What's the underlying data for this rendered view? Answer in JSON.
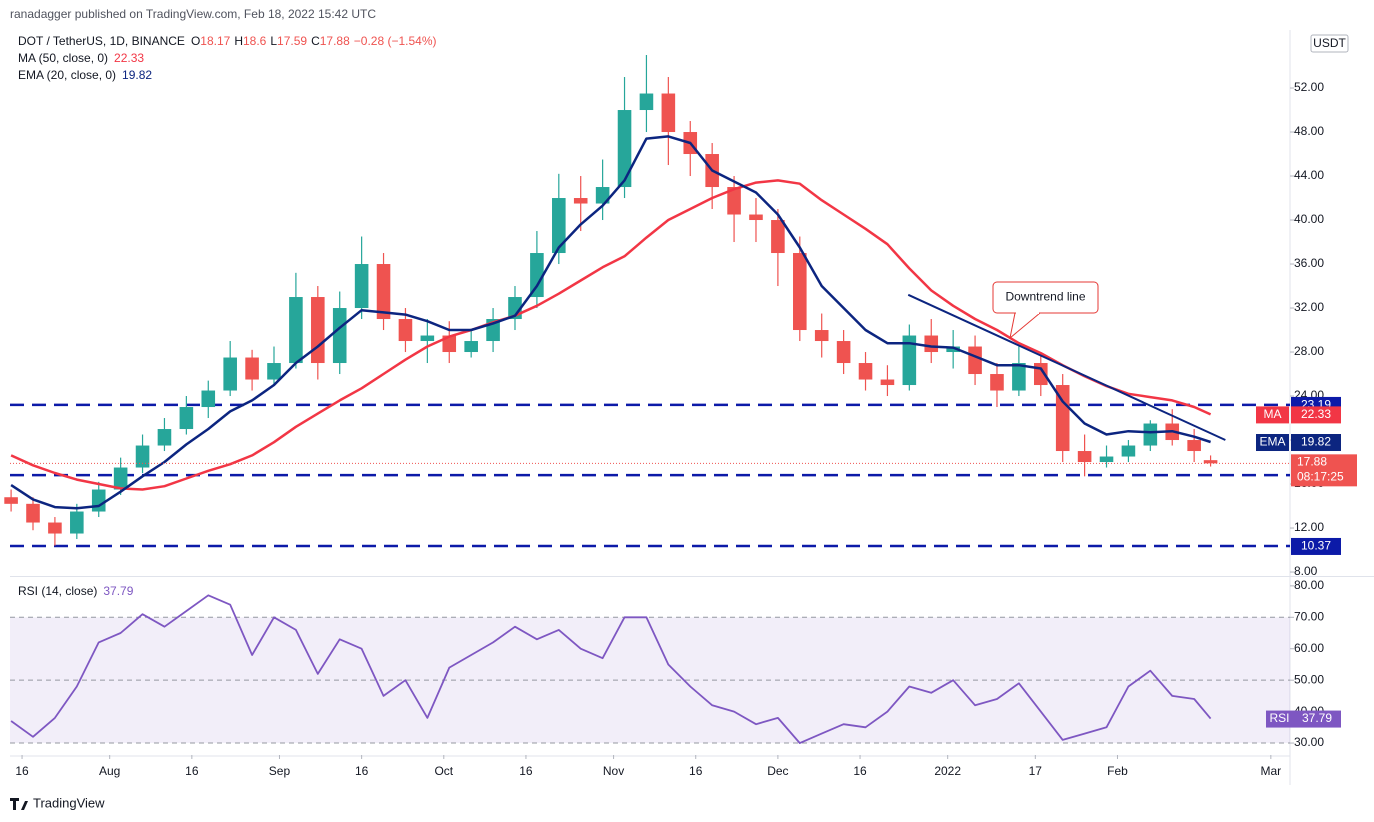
{
  "header": {
    "publisher": "ranadagger published on TradingView.com, Feb 18, 2022 15:42 UTC"
  },
  "footer": {
    "brand": "TradingView"
  },
  "chart_data": [
    {
      "type": "candlestick",
      "symbol": "DOT / TetherUS, 1D, BINANCE",
      "ohlc_letters": [
        "O",
        "H",
        "L",
        "C"
      ],
      "change": "−0.28 (−1.54%)",
      "currency": "USDT",
      "countdown": "08:17:25",
      "up_color": "#26a69a",
      "down_color": "#ef5350",
      "x": [
        -2,
        2,
        6,
        10,
        14,
        18,
        22,
        26,
        30,
        34,
        38,
        42,
        46,
        50,
        54,
        58,
        62,
        66,
        70,
        74,
        78,
        82,
        86,
        90,
        94,
        98,
        102,
        106,
        110,
        114,
        118,
        122,
        126,
        130,
        134,
        138,
        142,
        146,
        150,
        154,
        158,
        162,
        166,
        170,
        174,
        178,
        182,
        186,
        190,
        194,
        198,
        202,
        206,
        210,
        214,
        217
      ],
      "open": [
        14.8,
        14.2,
        12.5,
        11.5,
        13.5,
        15.5,
        17.5,
        19.5,
        21,
        23,
        24.5,
        27.5,
        25.5,
        27,
        33,
        27,
        32,
        36,
        31,
        29,
        29.5,
        28,
        29,
        31,
        33,
        37,
        42,
        41.5,
        43,
        50,
        51.5,
        48,
        46,
        43,
        40.5,
        40,
        37,
        30,
        29,
        27,
        25.5,
        25,
        29.5,
        28,
        28.5,
        26,
        24.5,
        27,
        25,
        19,
        18,
        18.5,
        19.5,
        21.5,
        20,
        18.17
      ],
      "high": [
        15.5,
        14.8,
        13.0,
        14.2,
        16.2,
        18.4,
        20.5,
        22.0,
        24.0,
        25.4,
        29.0,
        28.2,
        28.5,
        35.2,
        34.0,
        33.5,
        38.5,
        37.0,
        32.0,
        31.0,
        30.8,
        30.0,
        32.0,
        34.0,
        39.0,
        44.2,
        44.0,
        45.5,
        53.0,
        55.0,
        53.0,
        49.0,
        47.0,
        44.0,
        42.0,
        41.0,
        38.5,
        31.5,
        30.0,
        28.0,
        26.8,
        30.5,
        31.0,
        30.0,
        29.5,
        27.0,
        28.5,
        28.0,
        26.0,
        20.5,
        19.5,
        20.0,
        21.8,
        22.8,
        21.0,
        18.6
      ],
      "low": [
        13.5,
        11.8,
        10.4,
        11.0,
        13.0,
        15.0,
        17.0,
        19.0,
        20.5,
        22.0,
        24.0,
        24.5,
        25.0,
        26.5,
        25.5,
        26.0,
        31.0,
        30.0,
        28.0,
        27.0,
        27.0,
        27.5,
        28.0,
        30.0,
        32.0,
        36.0,
        39.0,
        40.0,
        42.0,
        48.0,
        45.0,
        44.0,
        41.0,
        38.0,
        38.0,
        34.0,
        29.0,
        27.5,
        26.0,
        24.5,
        24.0,
        24.5,
        27.0,
        26.5,
        25.0,
        23.0,
        24.0,
        24.0,
        18.0,
        16.7,
        17.5,
        18.0,
        19.0,
        19.5,
        18.0,
        17.59
      ],
      "close": [
        14.2,
        12.5,
        11.5,
        13.5,
        15.5,
        17.5,
        19.5,
        21,
        23,
        24.5,
        27.5,
        25.5,
        27,
        33,
        27,
        32,
        36,
        31,
        29,
        29.5,
        28,
        29,
        31,
        33,
        37,
        42,
        41.5,
        43,
        50,
        51.5,
        48,
        46,
        43,
        40.5,
        40,
        37,
        30,
        29,
        27,
        25.5,
        25,
        29.5,
        28,
        28.5,
        26,
        24.5,
        27,
        25,
        19,
        18,
        18.5,
        19.5,
        21.5,
        20,
        19,
        17.88
      ],
      "series": [
        {
          "name": "MA (50, close, 0)",
          "short": "MA",
          "color": "#f23645",
          "values": [
            18.6,
            17.7,
            17.0,
            16.4,
            16.0,
            15.6,
            15.5,
            15.8,
            16.5,
            17.2,
            17.8,
            18.6,
            19.8,
            21.2,
            22.4,
            23.6,
            24.7,
            26.0,
            27.3,
            28.5,
            29.4,
            30.0,
            30.7,
            31.3,
            32.2,
            33.3,
            34.5,
            35.7,
            36.7,
            38.4,
            40.0,
            41.0,
            42.0,
            42.8,
            43.4,
            43.6,
            43.3,
            41.8,
            40.5,
            39.2,
            37.8,
            35.6,
            33.6,
            32.2,
            31.0,
            30.0,
            28.8,
            27.9,
            26.8,
            25.8,
            24.9,
            24.2,
            23.9,
            23.6,
            23.0,
            22.33
          ]
        },
        {
          "name": "EMA (20, close, 0)",
          "short": "EMA",
          "color": "#0c2580",
          "values": [
            15.9,
            14.6,
            13.9,
            13.8,
            14.0,
            15.3,
            16.7,
            18.0,
            19.6,
            21.0,
            22.6,
            23.6,
            25.0,
            27.0,
            28.5,
            30.2,
            31.8,
            31.6,
            31.4,
            30.8,
            30.0,
            30.0,
            30.6,
            31.3,
            34.0,
            37.5,
            39.6,
            41.3,
            43.6,
            47.4,
            47.6,
            47.0,
            44.5,
            43.5,
            42.5,
            40.5,
            37.5,
            34.0,
            32.0,
            30.0,
            28.8,
            28.8,
            28.5,
            28.4,
            27.6,
            26.8,
            26.8,
            26.5,
            23.5,
            21.5,
            20.5,
            20.8,
            20.7,
            20.8,
            20.3,
            19.82
          ]
        }
      ],
      "levels": [
        23.19,
        16.81,
        10.37
      ],
      "level_color": "#0c1aa8",
      "trendline": {
        "x": [
          161.8,
          219.7
        ],
        "y": [
          33.2,
          20.0
        ],
        "color": "#0c2580"
      },
      "annotation": "Downtrend line",
      "xlim": [
        -2.2,
        231.5
      ],
      "xticks": [
        {
          "value": 0,
          "label": "16"
        },
        {
          "value": 16,
          "label": "Aug"
        },
        {
          "value": 31,
          "label": "16"
        },
        {
          "value": 47,
          "label": "Sep"
        },
        {
          "value": 62,
          "label": "16"
        },
        {
          "value": 77,
          "label": "Oct"
        },
        {
          "value": 92,
          "label": "16"
        },
        {
          "value": 108,
          "label": "Nov"
        },
        {
          "value": 123,
          "label": "16"
        },
        {
          "value": 138,
          "label": "Dec"
        },
        {
          "value": 153,
          "label": "16"
        },
        {
          "value": 169,
          "label": "2022"
        },
        {
          "value": 185,
          "label": "17"
        },
        {
          "value": 200,
          "label": "Feb"
        },
        {
          "value": 228,
          "label": "Mar"
        }
      ],
      "ylim": [
        7.73,
        56.82
      ],
      "yticks": [
        {
          "value": 8,
          "label": "8.00"
        },
        {
          "value": 12,
          "label": "12.00"
        },
        {
          "value": 16,
          "label": "16.00"
        },
        {
          "value": 20,
          "label": "20.00"
        },
        {
          "value": 24,
          "label": "24.00"
        },
        {
          "value": 28,
          "label": "28.00"
        },
        {
          "value": 32,
          "label": "32.00"
        },
        {
          "value": 36,
          "label": "36.00"
        },
        {
          "value": 40,
          "label": "40.00"
        },
        {
          "value": 44,
          "label": "44.00"
        },
        {
          "value": 48,
          "label": "48.00"
        },
        {
          "value": 52,
          "label": "52.00"
        }
      ]
    },
    {
      "type": "line",
      "series": [
        {
          "name": "RSI (14, close)",
          "short": "RSI",
          "color": "#7e57c2",
          "values": [
            37,
            32,
            38,
            48,
            62,
            65,
            71,
            67,
            72,
            77,
            74,
            58,
            70,
            66,
            52,
            63,
            60,
            45,
            50,
            38,
            54,
            58,
            62,
            67,
            63,
            66,
            60,
            57,
            70,
            70,
            55,
            48,
            42,
            40,
            36,
            38,
            30,
            33,
            36,
            35,
            40,
            48,
            46,
            50,
            42,
            44,
            49,
            40,
            31,
            33,
            35,
            48,
            53,
            45,
            44,
            37.79
          ]
        }
      ],
      "band": [
        30,
        70
      ],
      "levels": [
        30,
        50,
        70
      ],
      "ylim": [
        26.2,
        82.5
      ],
      "yticks": [
        {
          "value": 30,
          "label": "30.00"
        },
        {
          "value": 40,
          "label": "40.00"
        },
        {
          "value": 50,
          "label": "50.00"
        },
        {
          "value": 60,
          "label": "60.00"
        },
        {
          "value": 70,
          "label": "70.00"
        },
        {
          "value": 80,
          "label": "80.00"
        }
      ]
    }
  ]
}
